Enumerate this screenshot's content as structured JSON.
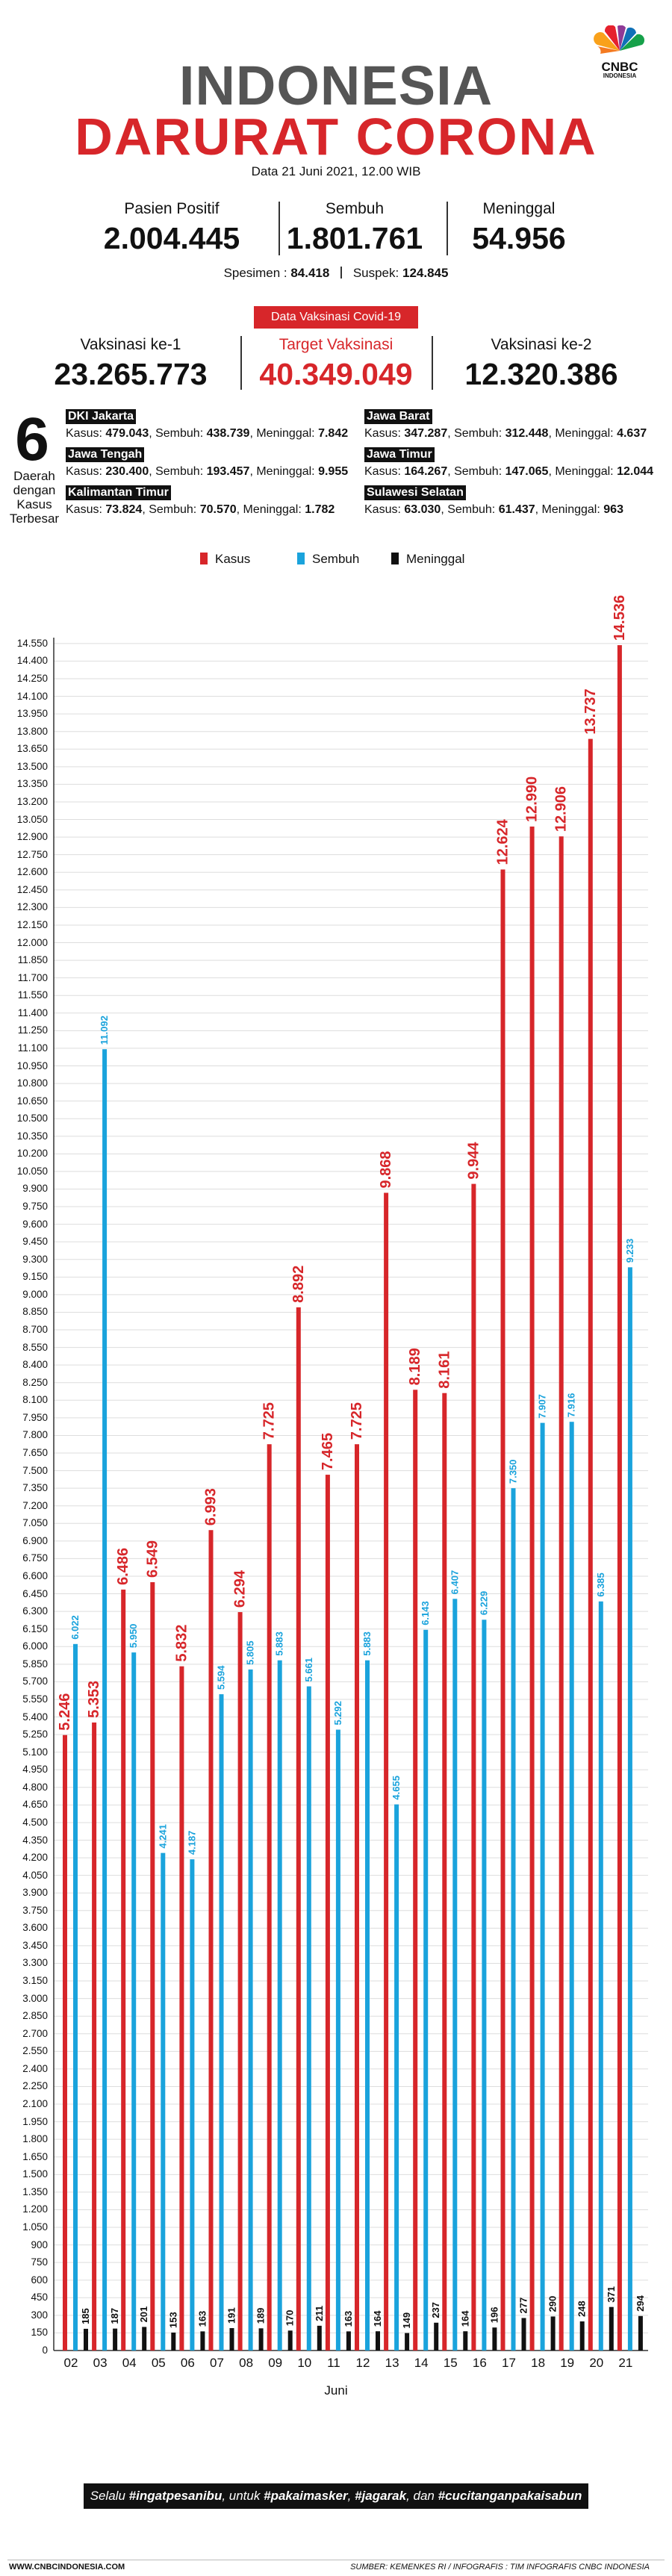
{
  "brand": {
    "logo_text": "CNBC",
    "logo_sub": "INDONESIA"
  },
  "header": {
    "title_line1": "INDONESIA",
    "title_line2": "DARURAT CORONA",
    "date": "Data 21 Juni 2021, 12.00 WIB"
  },
  "stats": [
    {
      "label": "Pasien Positif",
      "value": "2.004.445"
    },
    {
      "label": "Sembuh",
      "value": "1.801.761"
    },
    {
      "label": "Meninggal",
      "value": "54.956"
    }
  ],
  "specimen": {
    "spesimen_label": "Spesimen :",
    "spesimen_value": "84.418",
    "suspek_label": "Suspek:",
    "suspek_value": "124.845"
  },
  "vaccine": {
    "badge": "Data Vaksinasi Covid-19",
    "items": [
      {
        "label": "Vaksinasi ke-1",
        "value": "23.265.773"
      },
      {
        "label": "Target Vaksinasi",
        "value": "40.349.049"
      },
      {
        "label": "Vaksinasi ke-2",
        "value": "12.320.386"
      }
    ]
  },
  "regions": {
    "number": "6",
    "label": "Daerah dengan Kasus Terbesar",
    "items": [
      {
        "name": "DKI Jakarta",
        "kasus": "479.043",
        "sembuh": "438.739",
        "meninggal": "7.842"
      },
      {
        "name": "Jawa Barat",
        "kasus": "347.287",
        "sembuh": "312.448",
        "meninggal": "4.637"
      },
      {
        "name": "Jawa Tengah",
        "kasus": "230.400",
        "sembuh": "193.457",
        "meninggal": "9.955"
      },
      {
        "name": "Jawa Timur",
        "kasus": "164.267",
        "sembuh": "147.065",
        "meninggal": "12.044"
      },
      {
        "name": "Kalimantan Timur",
        "kasus": "73.824",
        "sembuh": "70.570",
        "meninggal": "1.782"
      },
      {
        "name": "Sulawesi Selatan",
        "kasus": "63.030",
        "sembuh": "61.437",
        "meninggal": "963"
      }
    ],
    "kasus_label": "Kasus:",
    "sembuh_label": "Sembuh:",
    "meninggal_label": "Meninggal:"
  },
  "chart_data": {
    "type": "bar",
    "xlabel": "Juni",
    "ylim": [
      0,
      14600
    ],
    "ystep": 150,
    "legend_position": "top-center",
    "categories": [
      "02",
      "03",
      "04",
      "05",
      "06",
      "07",
      "08",
      "09",
      "10",
      "11",
      "12",
      "13",
      "14",
      "15",
      "16",
      "17",
      "18",
      "19",
      "20",
      "21"
    ],
    "series": [
      {
        "name": "Kasus",
        "color": "#d7262a",
        "values": [
          5246,
          5353,
          6486,
          6549,
          5832,
          6993,
          6294,
          7725,
          8892,
          7465,
          7725,
          9868,
          8189,
          8161,
          9944,
          12624,
          12990,
          12906,
          13737,
          14536
        ],
        "labels": [
          "5.246",
          "5.353",
          "6.486",
          "6.549",
          "5.832",
          "6.993",
          "6.294",
          "7.725",
          "8.892",
          "7.465",
          "7.725",
          "9.868",
          "8.189",
          "8.161",
          "9.944",
          "12.624",
          "12.990",
          "12.906",
          "13.737",
          "14.536"
        ]
      },
      {
        "name": "Sembuh",
        "color": "#1aa3dc",
        "values": [
          6022,
          11092,
          5950,
          4241,
          4187,
          5594,
          5805,
          5883,
          5661,
          5292,
          5883,
          4655,
          6143,
          6407,
          6229,
          7350,
          7907,
          7916,
          6385,
          9233
        ],
        "labels": [
          "6.022",
          "11.092",
          "5.950",
          "4.241",
          "4.187",
          "5.594",
          "5.805",
          "5.883",
          "5.661",
          "5.292",
          "5.883",
          "4.655",
          "6.143",
          "6.407",
          "6.229",
          "7.350",
          "7.907",
          "7.916",
          "6.385",
          "9.233"
        ]
      },
      {
        "name": "Meninggal",
        "color": "#111111",
        "values": [
          185,
          187,
          201,
          153,
          163,
          191,
          189,
          170,
          211,
          163,
          164,
          149,
          237,
          164,
          196,
          277,
          290,
          248,
          371,
          294
        ],
        "labels": [
          "185",
          "187",
          "201",
          "153",
          "163",
          "191",
          "189",
          "170",
          "211",
          "163",
          "164",
          "149",
          "237",
          "164",
          "196",
          "277",
          "290",
          "248",
          "371",
          "294"
        ]
      }
    ]
  },
  "footer": {
    "tagline_prefix": "Selalu",
    "tag1": "#ingatpesanibu",
    "tagline_mid": ", untuk",
    "tag2": "#pakaimasker",
    "sep1": ",",
    "tag3": "#jagarak",
    "sep2": ", dan",
    "tag4": "#cucitanganpakaisabun",
    "website": "WWW.CNBCINDONESIA.COM",
    "source": "SUMBER: KEMENKES RI / INFOGRAFIS : TIM INFOGRAFIS CNBC INDONESIA"
  }
}
